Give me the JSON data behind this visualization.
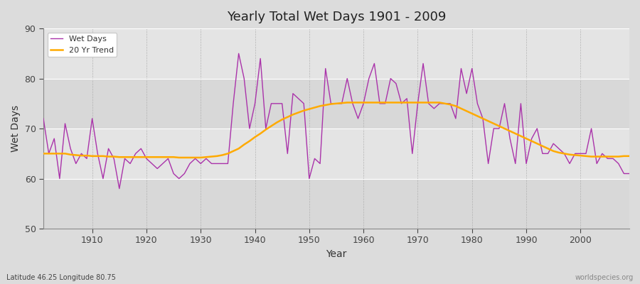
{
  "title": "Yearly Total Wet Days 1901 - 2009",
  "xlabel": "Year",
  "ylabel": "Wet Days",
  "ylim": [
    50,
    90
  ],
  "xlim": [
    1901,
    2009
  ],
  "yticks": [
    50,
    60,
    70,
    80,
    90
  ],
  "xticks": [
    1910,
    1920,
    1930,
    1940,
    1950,
    1960,
    1970,
    1980,
    1990,
    2000
  ],
  "bg_color": "#e8e8e8",
  "line_color": "#aa33aa",
  "trend_color": "#ffaa00",
  "subtitle": "Latitude 46.25 Longitude 80.75",
  "watermark": "worldspecies.org",
  "wet_days": [
    72,
    65,
    68,
    60,
    71,
    66,
    63,
    65,
    64,
    72,
    65,
    60,
    66,
    64,
    58,
    64,
    63,
    65,
    66,
    64,
    63,
    62,
    63,
    64,
    61,
    60,
    61,
    63,
    64,
    63,
    64,
    63,
    63,
    63,
    63,
    75,
    85,
    80,
    70,
    75,
    84,
    70,
    75,
    75,
    75,
    65,
    77,
    76,
    75,
    60,
    64,
    63,
    82,
    75,
    75,
    75,
    80,
    75,
    72,
    75,
    80,
    83,
    75,
    75,
    80,
    79,
    75,
    76,
    65,
    75,
    83,
    75,
    74,
    75,
    75,
    75,
    72,
    82,
    77,
    82,
    75,
    72,
    63,
    70,
    70,
    75,
    68,
    63,
    75,
    63,
    68,
    70,
    65,
    65,
    67,
    66,
    65,
    63,
    65,
    65,
    65,
    70,
    63,
    65,
    64,
    64,
    63,
    61,
    61
  ],
  "trend_years": [
    1901,
    1902,
    1903,
    1904,
    1905,
    1906,
    1907,
    1908,
    1909,
    1910,
    1911,
    1912,
    1913,
    1914,
    1915,
    1916,
    1917,
    1918,
    1919,
    1920,
    1921,
    1922,
    1923,
    1924,
    1925,
    1926,
    1927,
    1928,
    1929,
    1930,
    1931,
    1932,
    1933,
    1934,
    1935,
    1936,
    1937,
    1938,
    1939,
    1940,
    1941,
    1942,
    1943,
    1944,
    1945,
    1946,
    1947,
    1948,
    1949,
    1950,
    1951,
    1952,
    1953,
    1954,
    1955,
    1956,
    1957,
    1958,
    1959,
    1960,
    1961,
    1962,
    1963,
    1964,
    1965,
    1966,
    1967,
    1968,
    1969,
    1970,
    1971,
    1972,
    1973,
    1974,
    1975,
    1976,
    1977,
    1978,
    1979,
    1980,
    1981,
    1982,
    1983,
    1984,
    1985,
    1986,
    1987,
    1988,
    1989,
    1990,
    1991,
    1992,
    1993,
    1994,
    1995,
    1996,
    1997,
    1998,
    1999,
    2000,
    2001,
    2002,
    2003,
    2004,
    2005,
    2006,
    2007,
    2008,
    2009
  ],
  "trend_values": [
    65.0,
    65.0,
    65.0,
    65.0,
    65.0,
    64.8,
    64.7,
    64.6,
    64.6,
    64.5,
    64.5,
    64.5,
    64.4,
    64.4,
    64.3,
    64.3,
    64.3,
    64.3,
    64.3,
    64.3,
    64.3,
    64.3,
    64.3,
    64.3,
    64.3,
    64.2,
    64.2,
    64.2,
    64.2,
    64.2,
    64.3,
    64.4,
    64.5,
    64.7,
    65.0,
    65.5,
    66.0,
    66.8,
    67.5,
    68.3,
    69.0,
    69.8,
    70.5,
    71.2,
    71.8,
    72.3,
    72.8,
    73.2,
    73.6,
    73.9,
    74.2,
    74.5,
    74.7,
    74.9,
    75.0,
    75.1,
    75.2,
    75.2,
    75.2,
    75.2,
    75.2,
    75.2,
    75.2,
    75.2,
    75.2,
    75.2,
    75.2,
    75.2,
    75.2,
    75.2,
    75.2,
    75.2,
    75.2,
    75.2,
    75.0,
    74.8,
    74.5,
    74.0,
    73.5,
    73.0,
    72.5,
    72.0,
    71.5,
    71.0,
    70.5,
    70.0,
    69.5,
    69.0,
    68.5,
    68.0,
    67.5,
    67.0,
    66.5,
    66.0,
    65.5,
    65.2,
    65.0,
    64.8,
    64.7,
    64.6,
    64.5,
    64.4,
    64.4,
    64.4,
    64.4,
    64.4,
    64.4,
    64.5,
    64.5
  ]
}
